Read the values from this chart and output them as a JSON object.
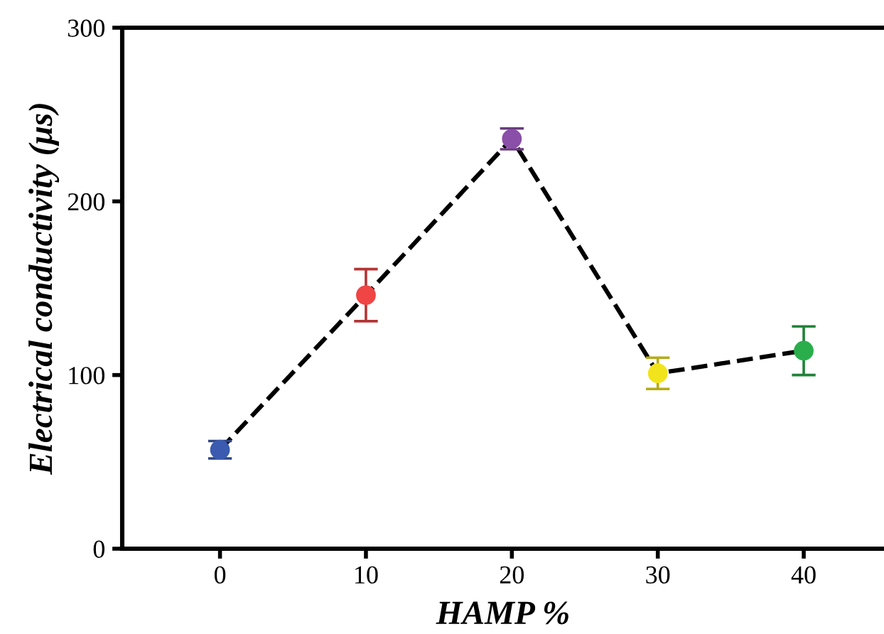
{
  "chart_data": {
    "type": "line",
    "xlabel": "HAMP %",
    "ylabel": "Electrical conductivity (μs)",
    "x": [
      0,
      10,
      20,
      30,
      40
    ],
    "series": [
      {
        "color": "#000000",
        "colors": [
          "#3a5bb0",
          "#f04545",
          "#8a4fa8",
          "#f2e41c",
          "#2aae4c"
        ],
        "values": [
          57,
          146,
          236,
          101,
          114
        ],
        "errors": [
          5,
          15,
          6,
          9,
          14
        ]
      }
    ],
    "xlim": [
      -6.7,
      45.5
    ],
    "xticks": [
      0,
      10,
      20,
      30,
      40
    ],
    "ylim": [
      0,
      300
    ],
    "yticks": [
      0,
      100,
      200,
      300
    ],
    "grid": false,
    "marker": "circle",
    "line_style": "dashed"
  }
}
